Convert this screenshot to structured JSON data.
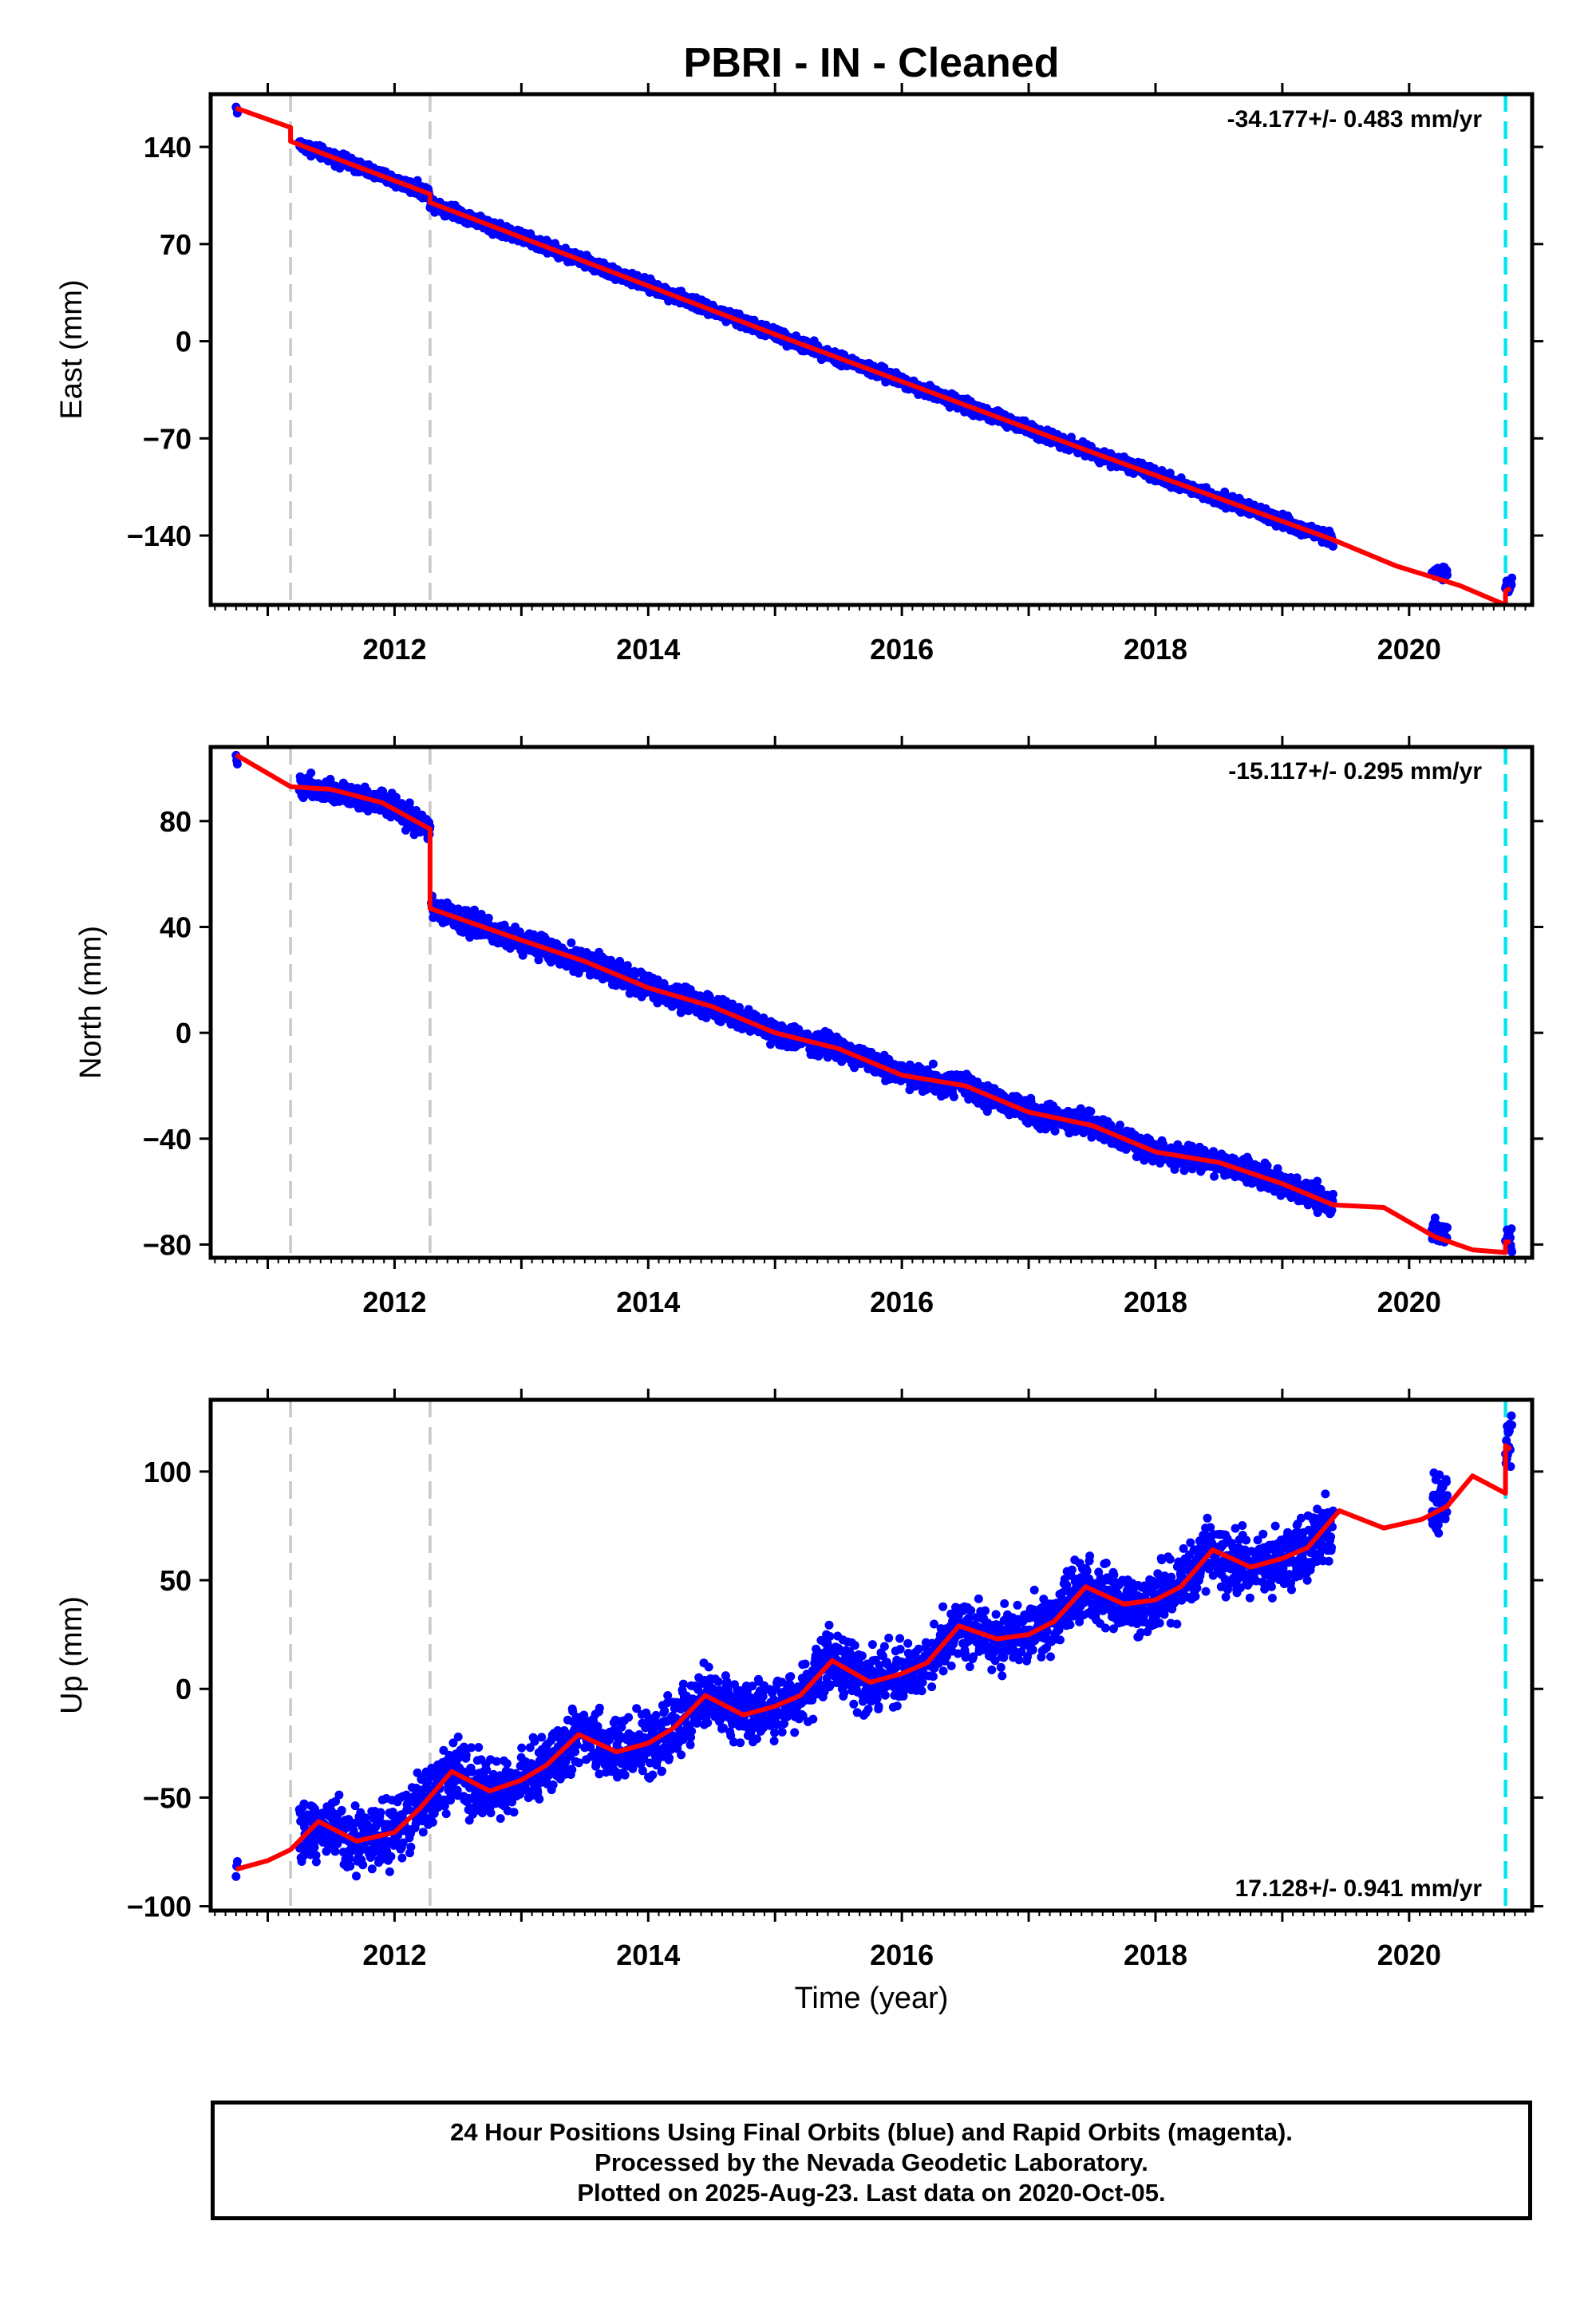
{
  "title": "PBRI  - IN - Cleaned",
  "x_label": "Time (year)",
  "footer": {
    "line1": "24 Hour Positions Using Final Orbits (blue) and Rapid Orbits (magenta).",
    "line2": "Processed by the Nevada Geodetic Laboratory.",
    "line3": "Plotted on 2025-Aug-23. Last data on 2020-Oct-05."
  },
  "colors": {
    "final_points": "#0000ff",
    "model": "#ff0000",
    "steps": "#c8c8c8",
    "last_data": "#00e5ee"
  },
  "chart_data": [
    {
      "type": "scatter",
      "ylabel": "East (mm)",
      "rate": "-34.177+/- 0.483 mm/yr",
      "rate_position": "top-right",
      "xlim": [
        2010.55,
        2020.97
      ],
      "ylim": [
        -190,
        178
      ],
      "yticks": [
        140,
        70,
        0,
        -70,
        -140
      ],
      "xticks": [
        2012,
        2014,
        2016,
        2018,
        2020
      ],
      "step_epochs": [
        2011.18,
        2012.28
      ],
      "last_data_epoch": 2020.76,
      "series": [
        {
          "kind": "points",
          "segments": [
            {
              "x": [
                2010.75,
                2010.76
              ],
              "y": [
                168,
                168
              ]
            },
            {
              "x": [
                2011.25,
                2019.4
              ],
              "y": [
                142,
                -136
              ]
            },
            {
              "x": [
                2020.18,
                2020.3
              ],
              "y": [
                -166,
                -168
              ]
            },
            {
              "x": [
                2020.76,
                2020.81
              ],
              "y": [
                -179,
                -176
              ]
            }
          ]
        },
        {
          "kind": "model",
          "x": [
            2010.75,
            2011.18,
            2011.18,
            2012.28,
            2012.28,
            2015.0,
            2017.5,
            2019.4,
            2019.9,
            2020.4,
            2020.76,
            2020.76,
            2020.8
          ],
          "y": [
            168,
            154,
            144,
            106,
            100,
            5,
            -80,
            -143,
            -162,
            -176,
            -190,
            -180,
            -178
          ]
        }
      ]
    },
    {
      "type": "scatter",
      "ylabel": "North (mm)",
      "rate": "-15.117+/- 0.295 mm/yr",
      "rate_position": "top-right",
      "xlim": [
        2010.55,
        2020.97
      ],
      "ylim": [
        -85,
        108
      ],
      "yticks": [
        80,
        40,
        0,
        -40,
        -80
      ],
      "xticks": [
        2012,
        2014,
        2016,
        2018,
        2020
      ],
      "step_epochs": [
        2011.18,
        2012.28
      ],
      "last_data_epoch": 2020.76,
      "series": [
        {
          "kind": "points",
          "segments": [
            {
              "x": [
                2010.75,
                2010.76
              ],
              "y": [
                105,
                105
              ]
            },
            {
              "x": [
                2011.25,
                2012.28
              ],
              "y": [
                93,
                77
              ]
            },
            {
              "x": [
                2012.29,
                2019.4
              ],
              "y": [
                48,
                -64
              ]
            },
            {
              "x": [
                2020.18,
                2020.3
              ],
              "y": [
                -75,
                -76
              ]
            },
            {
              "x": [
                2020.76,
                2020.81
              ],
              "y": [
                -79,
                -79
              ]
            }
          ]
        },
        {
          "kind": "model",
          "x": [
            2010.75,
            2011.18,
            2011.5,
            2011.9,
            2012.28,
            2012.28,
            2013.0,
            2013.5,
            2014.0,
            2014.5,
            2015.0,
            2015.5,
            2016.0,
            2016.5,
            2017.0,
            2017.5,
            2018.0,
            2018.5,
            2019.0,
            2019.4,
            2019.8,
            2020.2,
            2020.5,
            2020.76,
            2020.76,
            2020.8
          ],
          "y": [
            105,
            93,
            92,
            87,
            77,
            47,
            35,
            27,
            17,
            10,
            0,
            -6,
            -16,
            -20,
            -30,
            -35,
            -45,
            -49,
            -57,
            -65,
            -66,
            -77,
            -82,
            -83,
            -79,
            -79
          ]
        }
      ]
    },
    {
      "type": "scatter",
      "ylabel": "Up (mm)",
      "rate": "17.128+/- 0.941 mm/yr",
      "rate_position": "bottom-right",
      "xlim": [
        2010.55,
        2020.97
      ],
      "ylim": [
        -102,
        133
      ],
      "yticks": [
        100,
        50,
        0,
        -50,
        -100
      ],
      "xticks": [
        2012,
        2014,
        2016,
        2018,
        2020
      ],
      "step_epochs": [
        2011.18,
        2012.28
      ],
      "last_data_epoch": 2020.76,
      "series": [
        {
          "kind": "points",
          "segments": [
            {
              "x": [
                2010.75,
                2010.76
              ],
              "y": [
                -83,
                -83
              ]
            },
            {
              "x": [
                2011.25,
                2019.4
              ],
              "y": [
                -63,
                80
              ]
            },
            {
              "x": [
                2020.18,
                2020.3
              ],
              "y": [
                85,
                85
              ]
            },
            {
              "x": [
                2020.76,
                2020.81
              ],
              "y": [
                110,
                115
              ]
            }
          ]
        },
        {
          "kind": "model",
          "x": [
            2010.75,
            2011.0,
            2011.18,
            2011.4,
            2011.7,
            2012.0,
            2012.2,
            2012.45,
            2012.75,
            2013.0,
            2013.2,
            2013.45,
            2013.75,
            2014.0,
            2014.2,
            2014.45,
            2014.75,
            2015.0,
            2015.2,
            2015.45,
            2015.75,
            2016.0,
            2016.2,
            2016.45,
            2016.75,
            2017.0,
            2017.2,
            2017.45,
            2017.75,
            2018.0,
            2018.2,
            2018.45,
            2018.75,
            2019.0,
            2019.2,
            2019.45,
            2019.8,
            2020.1,
            2020.3,
            2020.5,
            2020.76,
            2020.76,
            2020.8
          ],
          "y": [
            -83,
            -79,
            -74,
            -61,
            -70,
            -66,
            -55,
            -38,
            -47,
            -42,
            -35,
            -21,
            -29,
            -25,
            -18,
            -3,
            -12,
            -8,
            -3,
            13,
            3,
            7,
            12,
            29,
            23,
            25,
            31,
            47,
            39,
            41,
            47,
            64,
            56,
            60,
            65,
            82,
            74,
            78,
            84,
            98,
            90,
            112,
            110
          ]
        }
      ]
    }
  ]
}
